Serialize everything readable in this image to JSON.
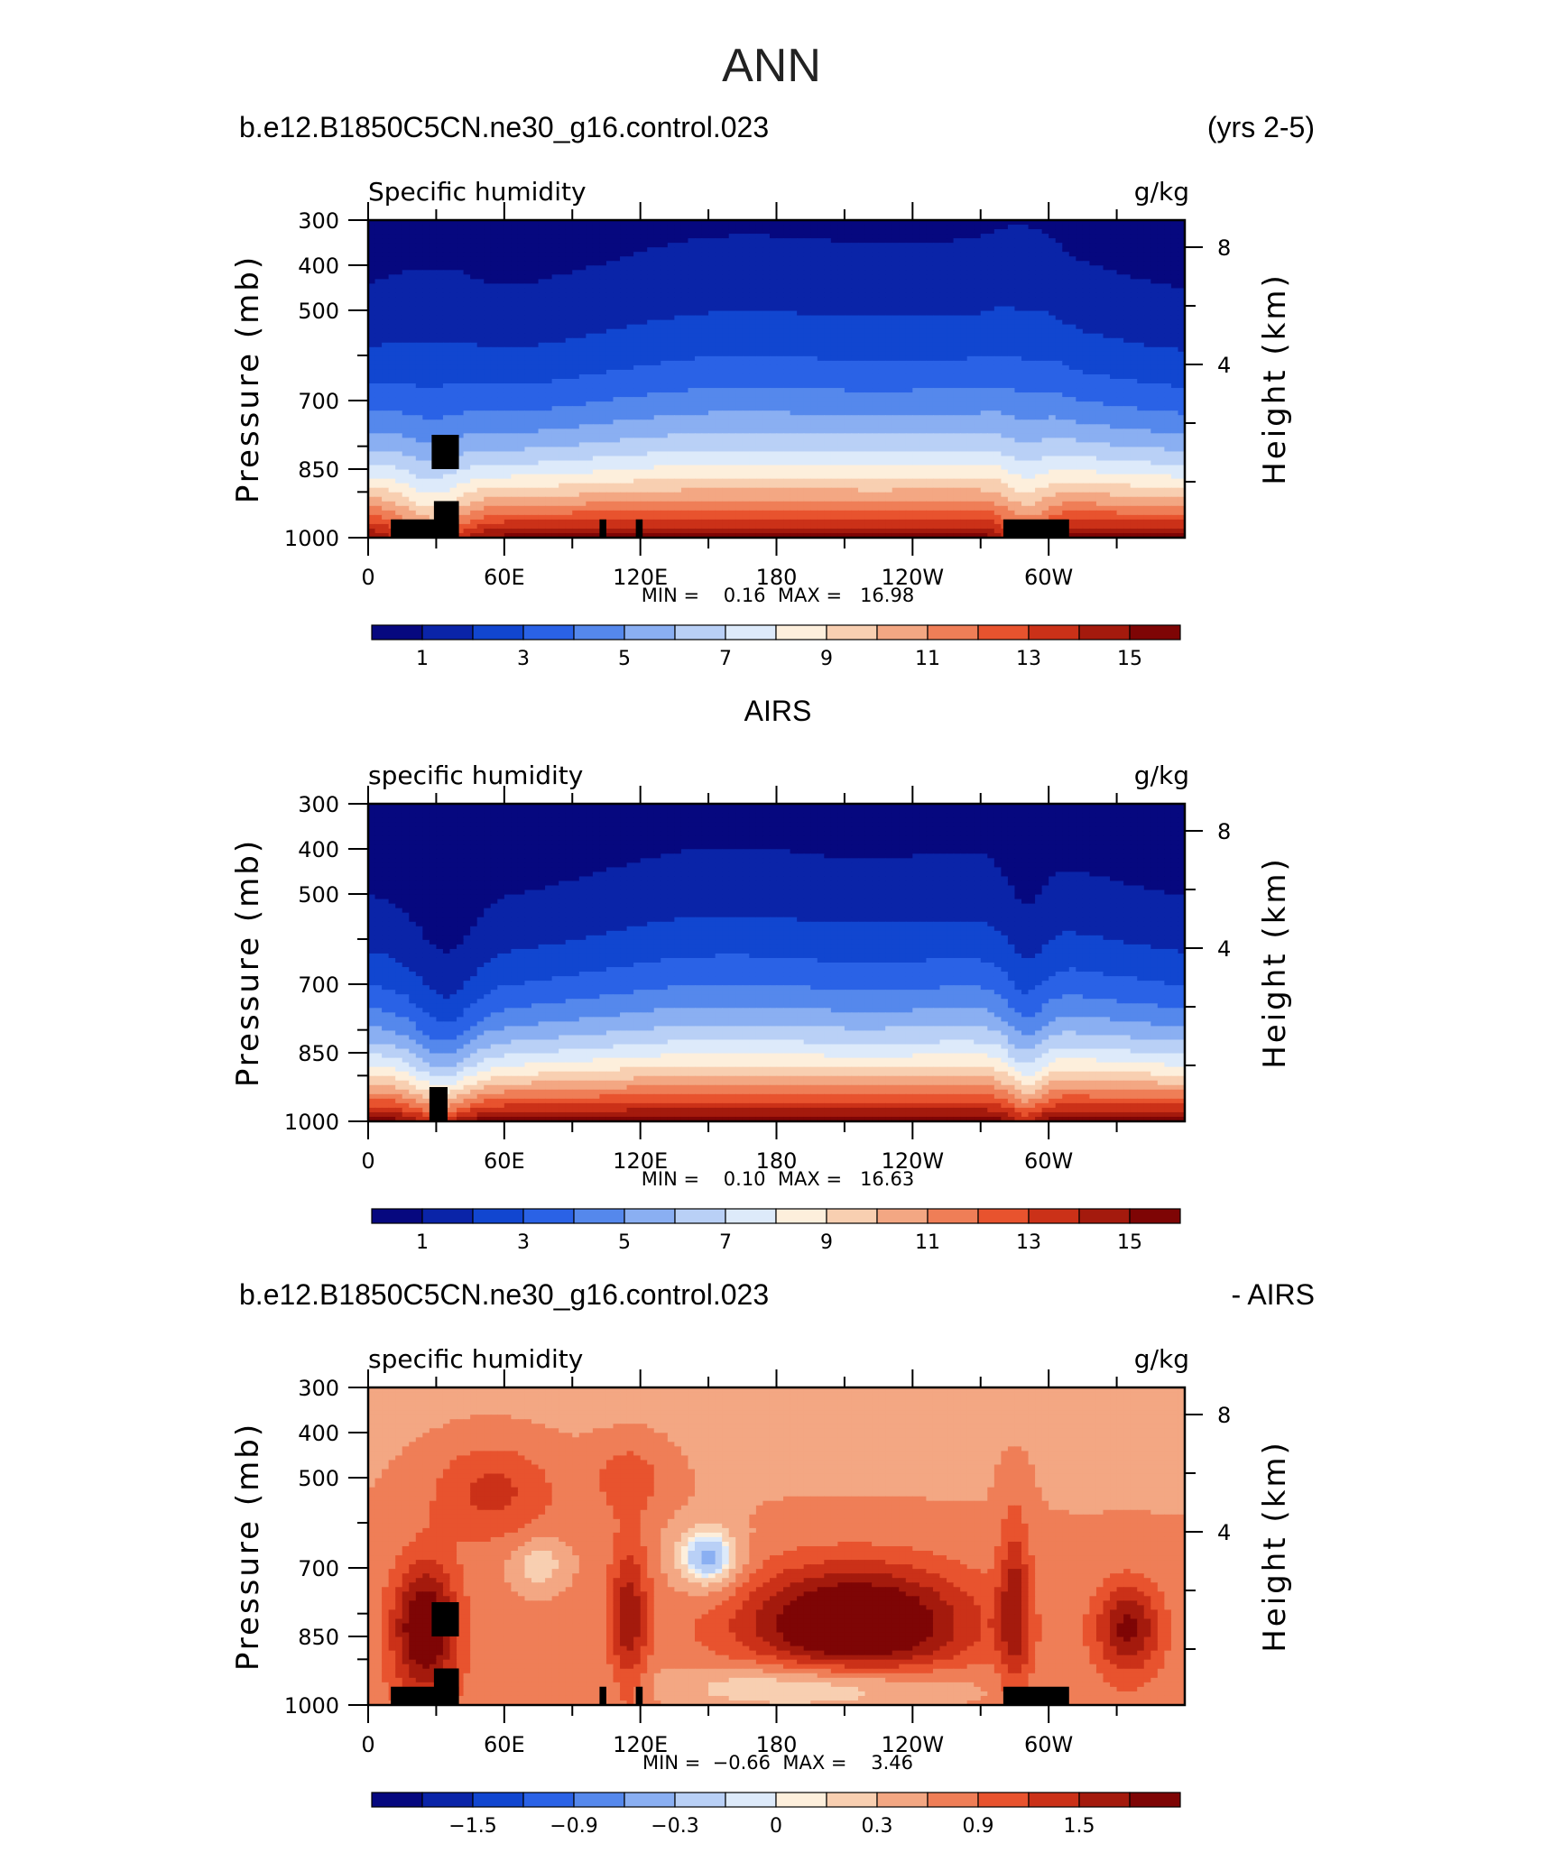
{
  "figure": {
    "title": "ANN"
  },
  "colormaps": {
    "humidity": [
      "#06087f",
      "#0a24a8",
      "#1146d0",
      "#2a62e6",
      "#5588ec",
      "#8aaff2",
      "#b9d0f6",
      "#ddeafa",
      "#fdefdc",
      "#f8cfb1",
      "#f3a783",
      "#ef7e57",
      "#e8532e",
      "#cb3118",
      "#a41a0d",
      "#7e0505"
    ],
    "difference": [
      "#06087f",
      "#0a24a8",
      "#1146d0",
      "#2a62e6",
      "#5588ec",
      "#8aaff2",
      "#b9d0f6",
      "#ddeafa",
      "#fdefdc",
      "#f8cfb1",
      "#f3a783",
      "#ef7e57",
      "#e8532e",
      "#cb3118",
      "#a41a0d",
      "#7e0505"
    ]
  },
  "panels": [
    {
      "header_left": "b.e12.B1850C5CN.ne30_g16.control.023",
      "header_right": "(yrs 2-5)",
      "header_center": "",
      "var_label": "Specific humidity",
      "units": "g/kg",
      "ylabel": "Pressure (mb)",
      "ylabel_right": "Height (km)",
      "stats": "MIN =    0.16  MAX =   16.98",
      "colorbar_labels": [
        "1",
        "3",
        "5",
        "7",
        "9",
        "11",
        "13",
        "15"
      ],
      "mode": "model"
    },
    {
      "header_left": "",
      "header_right": "",
      "header_center": "AIRS",
      "var_label": "specific humidity",
      "units": "g/kg",
      "ylabel": "Pressure (mb)",
      "ylabel_right": "Height (km)",
      "stats": "MIN =    0.10  MAX =   16.63",
      "colorbar_labels": [
        "1",
        "3",
        "5",
        "7",
        "9",
        "11",
        "13",
        "15"
      ],
      "mode": "obs"
    },
    {
      "header_left": "b.e12.B1850C5CN.ne30_g16.control.023",
      "header_right": "- AIRS",
      "header_center": "",
      "var_label": "specific humidity",
      "units": "g/kg",
      "ylabel": "Pressure (mb)",
      "ylabel_right": "Height (km)",
      "stats": "MIN =  −0.66  MAX =    3.46",
      "colorbar_labels": [
        "−1.5",
        "−0.9",
        "−0.3",
        "0",
        "0.3",
        "0.9",
        "1.5"
      ],
      "mode": "diff"
    }
  ],
  "chart_data": [
    {
      "type": "heatmap",
      "title": "ANN",
      "subtitle": "b.e12.B1850C5CN.ne30_g16.control.023 (yrs 2-5)",
      "variable": "Specific humidity",
      "units": "g/kg",
      "xlabel": "",
      "ylabel": "Pressure (mb)",
      "ylabel_right": "Height (km)",
      "x_tick_labels": [
        "0",
        "60E",
        "120E",
        "180",
        "120W",
        "60W"
      ],
      "y_tick_labels": [
        "300",
        "400",
        "500",
        "700",
        "850",
        "1000"
      ],
      "y_right_tick_labels": [
        "8",
        "4"
      ],
      "ylim": [
        1000,
        300
      ],
      "contour_levels": [
        1,
        2,
        3,
        4,
        5,
        6,
        7,
        8,
        9,
        10,
        11,
        12,
        13,
        14,
        15
      ],
      "colorbar_tick_labels": [
        1,
        3,
        5,
        7,
        9,
        11,
        13,
        15
      ],
      "min": 0.16,
      "max": 16.98
    },
    {
      "type": "heatmap",
      "title": "AIRS",
      "variable": "specific humidity",
      "units": "g/kg",
      "xlabel": "",
      "ylabel": "Pressure (mb)",
      "ylabel_right": "Height (km)",
      "x_tick_labels": [
        "0",
        "60E",
        "120E",
        "180",
        "120W",
        "60W"
      ],
      "y_tick_labels": [
        "300",
        "400",
        "500",
        "700",
        "850",
        "1000"
      ],
      "y_right_tick_labels": [
        "8",
        "4"
      ],
      "ylim": [
        1000,
        300
      ],
      "contour_levels": [
        1,
        2,
        3,
        4,
        5,
        6,
        7,
        8,
        9,
        10,
        11,
        12,
        13,
        14,
        15
      ],
      "colorbar_tick_labels": [
        1,
        3,
        5,
        7,
        9,
        11,
        13,
        15
      ],
      "min": 0.1,
      "max": 16.63
    },
    {
      "type": "heatmap",
      "title": "b.e12.B1850C5CN.ne30_g16.control.023 - AIRS",
      "variable": "specific humidity",
      "units": "g/kg",
      "xlabel": "",
      "ylabel": "Pressure (mb)",
      "ylabel_right": "Height (km)",
      "x_tick_labels": [
        "0",
        "60E",
        "120E",
        "180",
        "120W",
        "60W"
      ],
      "y_tick_labels": [
        "300",
        "400",
        "500",
        "700",
        "850",
        "1000"
      ],
      "y_right_tick_labels": [
        "8",
        "4"
      ],
      "ylim": [
        1000,
        300
      ],
      "contour_levels": [
        -1.8,
        -1.5,
        -1.2,
        -0.9,
        -0.6,
        -0.3,
        -0.1,
        0,
        0.1,
        0.3,
        0.6,
        0.9,
        1.2,
        1.5,
        1.8
      ],
      "colorbar_tick_labels": [
        -1.5,
        -0.9,
        -0.3,
        0,
        0.3,
        0.9,
        1.5
      ],
      "min": -0.66,
      "max": 3.46
    }
  ]
}
